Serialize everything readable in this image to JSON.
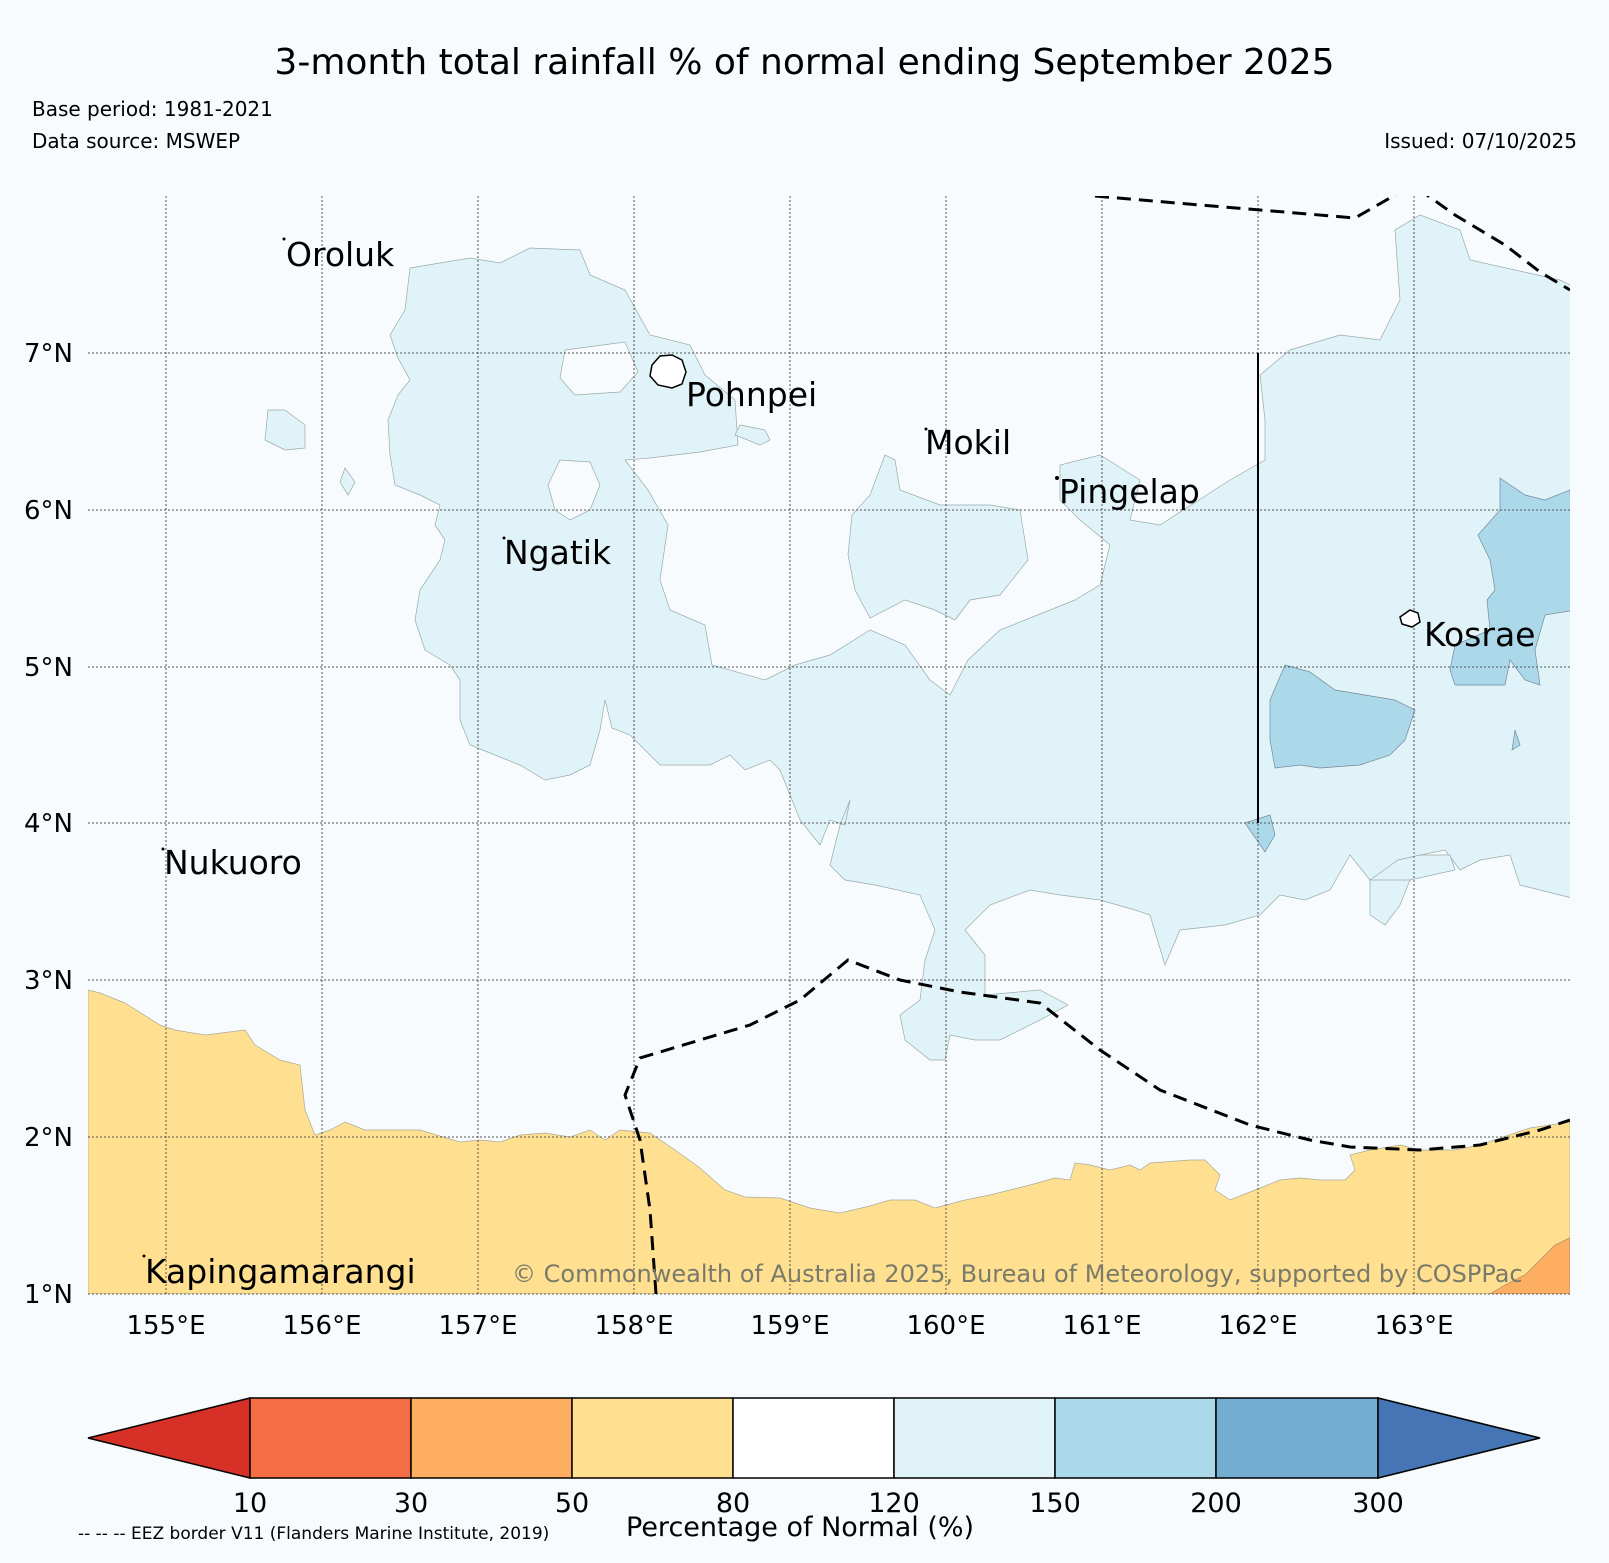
{
  "header": {
    "title": "3-month total rainfall % of normal ending September 2025",
    "base_period": "Base period: 1981-2021",
    "data_source": "Data source: MSWEP",
    "issued": "Issued: 07/10/2025"
  },
  "map": {
    "lat_labels": [
      "7°N",
      "6°N",
      "5°N",
      "4°N",
      "3°N",
      "2°N",
      "1°N"
    ],
    "lon_labels": [
      "155°E",
      "156°E",
      "157°E",
      "158°E",
      "159°E",
      "160°E",
      "161°E",
      "162°E",
      "163°E"
    ],
    "places": {
      "oroluk": "Oroluk",
      "pohnpei": "Pohnpei",
      "mokil": "Mokil",
      "pingelap": "Pingelap",
      "ngatik": "Ngatik",
      "kosrae": "Kosrae",
      "nukuoro": "Nukuoro",
      "kapingamarangi": "Kapingamarangi"
    },
    "copyright": "© Commonwealth of Australia 2025, Bureau of Meteorology, supported by COSPPac"
  },
  "colorbar": {
    "ticks": [
      "10",
      "30",
      "50",
      "80",
      "120",
      "150",
      "200",
      "300"
    ],
    "colors": [
      "#d73027",
      "#f46d43",
      "#fdae61",
      "#fee090",
      "#ffffff",
      "#e0f3f8",
      "#abd9e9",
      "#74add1",
      "#4575b4"
    ],
    "label": "Percentage of Normal (%)"
  },
  "legend_note": "-- -- -- EEZ border V11 (Flanders Marine Institute, 2019)"
}
